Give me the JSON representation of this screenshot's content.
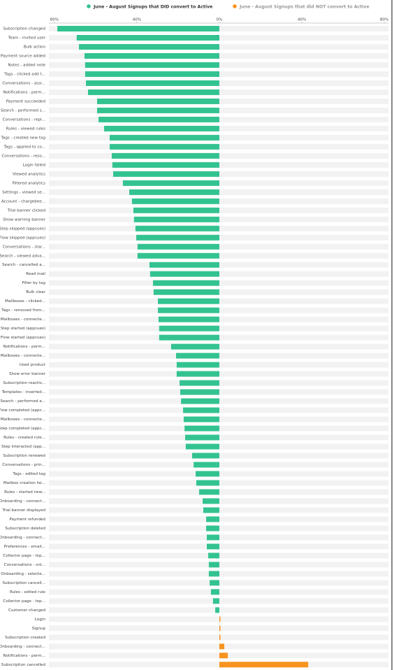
{
  "chart_data": {
    "type": "bar",
    "orientation": "horizontal",
    "categories": [
      "Subscription changed",
      "Team - invited user",
      "Bulk action",
      "Payment source added",
      "Notes - added note",
      "Tags - clicked add t...",
      "Conversations - assi...",
      "Notifications - perm...",
      "Payment succeeded",
      "Search - performed s...",
      "Conversations - repl...",
      "Rules - viewed rules",
      "Tags - created new tag",
      "Tags - applied to co...",
      "Conversations - reso...",
      "Login failed",
      "Viewed analytics",
      "Filtered analytics",
      "Settings - viewed se...",
      "Account - chargebee...",
      "Trial banner clicked",
      "Show warning banner",
      "Step skipped (appcues)",
      "Flow skipped (appcues)",
      "Conversations - star...",
      "Search - viewed adva...",
      "Search - cancelled a...",
      "Read mail",
      "Filter by tag",
      "Bulk clear",
      "Mailboxes - clicked...",
      "Tags - removed from...",
      "Mailboxes - connecte...",
      "Step started (appcues)",
      "Flow started (appcues)",
      "Notifications - perm...",
      "Mailboxes - connecte...",
      "Used product",
      "Show error banner",
      "Subscription reactiv...",
      "Templates - inserted...",
      "Search - performed a...",
      "Flow completed (appc...",
      "Mailboxes - connecte...",
      "Step completed (appc...",
      "Rules - created rule...",
      "Step interacted (app...",
      "Subscription renewed",
      "Conversations - prin...",
      "Tags - edited tag",
      "Mailbox creation fai...",
      "Rules - started new...",
      "Onboarding - connect...",
      "Trial banner displayed",
      "Payment refunded",
      "Subscription deleted",
      "Onboarding - connect...",
      "Preferences - email...",
      "Collector page - top...",
      "Conversations - onl...",
      "Onboarding - selecte...",
      "Subscription cancell...",
      "Rules - edited rule",
      "Collector page - top...",
      "Customer changed",
      "Login",
      "Signup",
      "Subscription created",
      "Onboarding - connect...",
      "Notifications - perm...",
      "Subscription cancelled"
    ],
    "series": [
      {
        "name": "June - August Signups that DID convert to Active",
        "color": "#33c390",
        "values": [
          -78.6,
          -69.2,
          -68.1,
          -65.4,
          -65.1,
          -65.1,
          -64.7,
          -63.7,
          -59.3,
          -59.3,
          -58.6,
          -55.9,
          -53.2,
          -53.2,
          -52.2,
          -51.9,
          -51.5,
          -46.8,
          -43.7,
          -42.4,
          -41.7,
          -41.4,
          -40.7,
          -40.3,
          -39.7,
          -39.7,
          -33.9,
          -33.6,
          -32.2,
          -31.9,
          -29.8,
          -29.8,
          -29.5,
          -29.2,
          -29.2,
          -23.4,
          -21.0,
          -20.7,
          -20.7,
          -19.3,
          -19.0,
          -18.6,
          -17.6,
          -17.3,
          -16.9,
          -16.6,
          -16.3,
          -13.2,
          -12.5,
          -11.5,
          -11.2,
          -9.8,
          -8.1,
          -7.8,
          -6.4,
          -6.4,
          -6.1,
          -6.1,
          -5.4,
          -5.1,
          -5.1,
          -4.7,
          -4.1,
          -3.1,
          -2.0,
          null,
          null,
          null,
          null,
          null,
          null
        ]
      },
      {
        "name": "June - August Signups that did NOT convert to Active",
        "color": "#f7931e",
        "values": [
          null,
          null,
          null,
          null,
          null,
          null,
          null,
          null,
          null,
          null,
          null,
          null,
          null,
          null,
          null,
          null,
          null,
          null,
          null,
          null,
          null,
          null,
          null,
          null,
          null,
          null,
          null,
          null,
          null,
          null,
          null,
          null,
          null,
          null,
          null,
          null,
          null,
          null,
          null,
          null,
          null,
          null,
          null,
          null,
          null,
          null,
          null,
          null,
          null,
          null,
          null,
          null,
          null,
          null,
          null,
          null,
          null,
          null,
          null,
          null,
          null,
          null,
          null,
          null,
          null,
          0.5,
          0.5,
          0.5,
          2.4,
          4.1,
          43.1
        ]
      }
    ],
    "xlim": [
      -82,
      82
    ],
    "xticks": [
      {
        "value": -80,
        "label": "80%"
      },
      {
        "value": -40,
        "label": "40%"
      },
      {
        "value": 0,
        "label": "0%"
      },
      {
        "value": 40,
        "label": "40%"
      },
      {
        "value": 80,
        "label": "80%"
      }
    ]
  }
}
